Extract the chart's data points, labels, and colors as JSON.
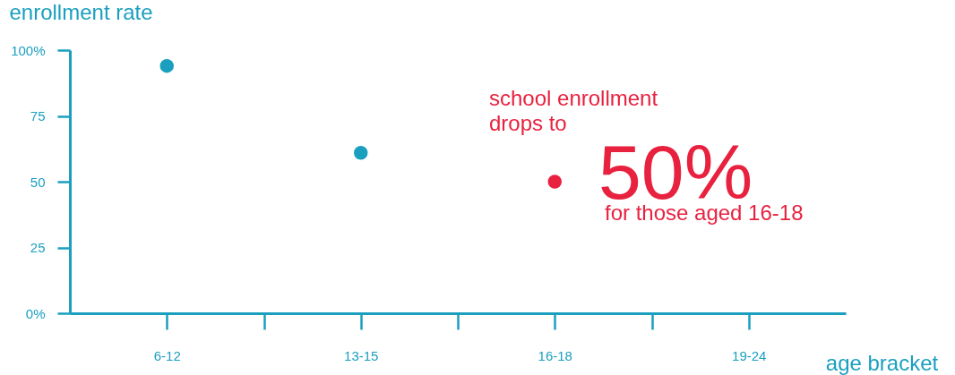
{
  "chart_data": {
    "type": "scatter",
    "xlabel": "age bracket",
    "ylabel": "enrollment rate",
    "categories": [
      "6-12",
      null,
      "13-15",
      null,
      "16-18",
      null,
      "19-24"
    ],
    "values": [
      94,
      null,
      61,
      null,
      50,
      null,
      null
    ],
    "colors": [
      "#1a9fbf",
      null,
      "#1a9fbf",
      null,
      "#e8213f",
      null,
      null
    ],
    "ylim": [
      0,
      100
    ],
    "yticks": [
      {
        "value": 0,
        "label": "0%"
      },
      25,
      50,
      75,
      {
        "value": 100,
        "label": "100%"
      }
    ],
    "annotations": [
      "school enrollment",
      "drops to",
      "50%",
      "for those aged 16-18"
    ],
    "grid": false,
    "marker": "circle"
  }
}
